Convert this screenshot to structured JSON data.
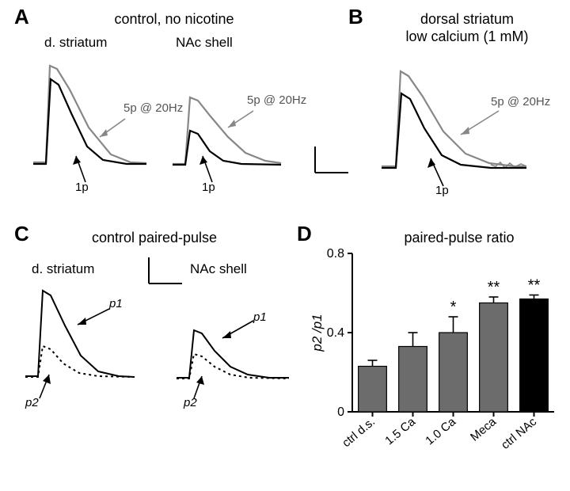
{
  "panelA": {
    "label": "A",
    "title": "control, no nicotine",
    "left_sub": "d. striatum",
    "right_sub": "NAc shell",
    "trace_annot_burst": "5p @ 20Hz",
    "trace_annot_single": "1p",
    "colors": {
      "single": "#000000",
      "burst": "#878787",
      "bg": "#ffffff"
    }
  },
  "panelB": {
    "label": "B",
    "title_line1": "dorsal striatum",
    "title_line2": "low calcium (1 mM)",
    "trace_annot_burst": "5p @ 20Hz",
    "trace_annot_single": "1p",
    "colors": {
      "single": "#000000",
      "burst": "#878787"
    }
  },
  "panelC": {
    "label": "C",
    "title": "control paired-pulse",
    "left_sub": "d. striatum",
    "right_sub": "NAc shell",
    "p1": "p1",
    "p2": "p2",
    "colors": {
      "p1": "#000000",
      "p2": "#000000"
    }
  },
  "panelD": {
    "label": "D",
    "title": "paired-pulse ratio",
    "ylabel": "p2 /p1",
    "ylim": [
      0,
      0.8
    ],
    "yticks": [
      0,
      0.4,
      0.8
    ],
    "bars": [
      {
        "name": "ctrl d.s.",
        "value": 0.23,
        "err": 0.03,
        "color": "#6c6c6c",
        "sig": ""
      },
      {
        "name": "1.5 Ca",
        "value": 0.33,
        "err": 0.07,
        "color": "#6c6c6c",
        "sig": ""
      },
      {
        "name": "1.0 Ca",
        "value": 0.4,
        "err": 0.08,
        "color": "#6c6c6c",
        "sig": "*"
      },
      {
        "name": "Meca",
        "value": 0.55,
        "err": 0.03,
        "color": "#6c6c6c",
        "sig": "**"
      },
      {
        "name": "ctrl NAc",
        "value": 0.57,
        "err": 0.02,
        "color": "#000000",
        "sig": "**"
      }
    ],
    "axis_color": "#000000",
    "bg": "#ffffff"
  },
  "scalebar": {
    "color": "#000000"
  }
}
